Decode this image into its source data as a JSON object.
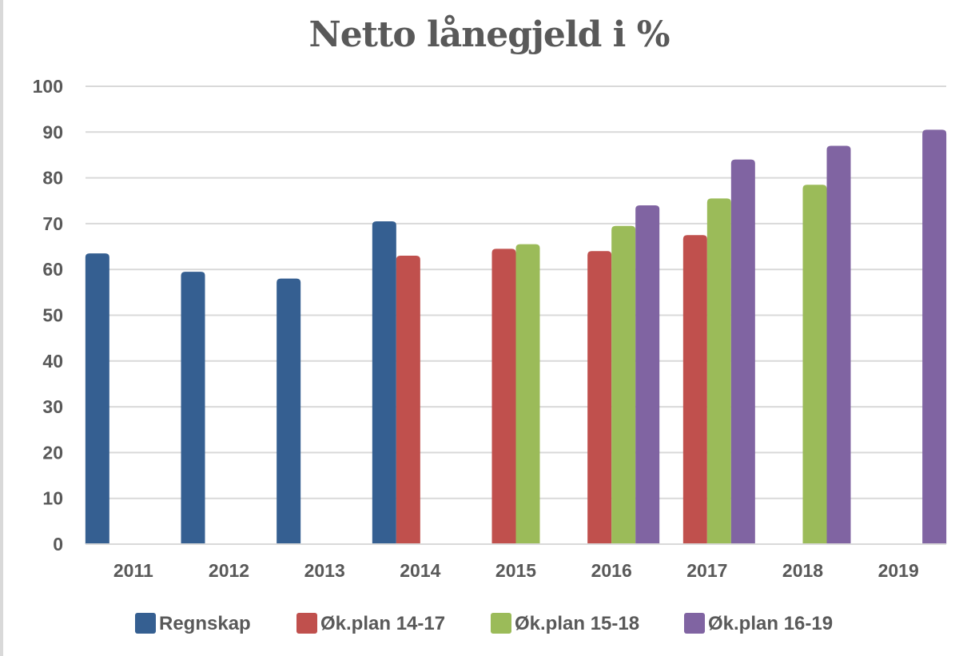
{
  "chart_data": {
    "type": "bar",
    "title": "Netto lånegjeld i %",
    "xlabel": "",
    "ylabel": "",
    "ylim": [
      0,
      100
    ],
    "yticks": [
      0,
      10,
      20,
      30,
      40,
      50,
      60,
      70,
      80,
      90,
      100
    ],
    "categories": [
      "2011",
      "2012",
      "2013",
      "2014",
      "2015",
      "2016",
      "2017",
      "2018",
      "2019"
    ],
    "grid": true,
    "legend_position": "bottom",
    "series": [
      {
        "name": "Regnskap",
        "color": "#355f91",
        "values": [
          63.5,
          59.5,
          58,
          70.5,
          null,
          null,
          null,
          null,
          null
        ]
      },
      {
        "name": "Øk.plan 14-17",
        "color": "#c0504d",
        "values": [
          null,
          null,
          null,
          63,
          64.5,
          64,
          67.5,
          null,
          null
        ]
      },
      {
        "name": "Øk.plan 15-18",
        "color": "#9bbb59",
        "values": [
          null,
          null,
          null,
          null,
          65.5,
          69.5,
          75.5,
          78.5,
          null
        ]
      },
      {
        "name": "Øk.plan 16-19",
        "color": "#8064a2",
        "values": [
          null,
          null,
          null,
          null,
          null,
          74,
          84,
          87,
          90.5
        ]
      }
    ]
  }
}
